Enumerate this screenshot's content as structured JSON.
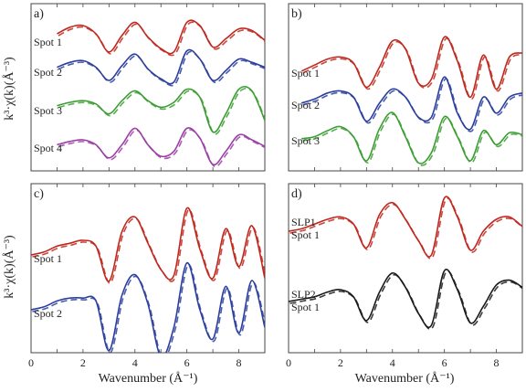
{
  "figure": {
    "ylabel": "k³·χ(k)(Å⁻³)",
    "xlabel": "Wavenumber (Å⁻¹)"
  },
  "colors": {
    "red": "#c0281e",
    "red2": "#e54a3a",
    "blue": "#2b3f9e",
    "green": "#3c9e32",
    "purple": "#9b3fa6",
    "black": "#1a1a1a",
    "frame": "#444444"
  },
  "chart_data": [
    {
      "type": "line",
      "panel": "a)",
      "xlim": [
        0,
        9
      ],
      "xticks": [],
      "labels": [
        "Spot 1",
        "Spot 2",
        "Spot 3",
        "Spot 4"
      ],
      "series": [
        {
          "label": "Spot 1",
          "color": "red",
          "style": "solid+dashed",
          "x": [
            1.0,
            1.5,
            2.0,
            2.5,
            3.0,
            3.5,
            4.0,
            4.5,
            5.0,
            5.5,
            6.0,
            6.5,
            7.0,
            7.5,
            8.0,
            8.5,
            9.0
          ],
          "y": [
            0.5,
            0.9,
            1.0,
            0.5,
            -0.6,
            0.4,
            1.2,
            0.3,
            -0.4,
            -0.6,
            1.2,
            1.0,
            -0.3,
            0.2,
            0.8,
            0.7,
            0.1
          ]
        },
        {
          "label": "Spot 2",
          "color": "blue",
          "style": "solid+dashed",
          "x": [
            1.0,
            1.5,
            2.0,
            2.5,
            3.0,
            3.5,
            4.0,
            4.5,
            5.0,
            5.5,
            6.0,
            6.5,
            7.0,
            7.5,
            8.0,
            8.5,
            9.0
          ],
          "y": [
            0.3,
            0.6,
            0.7,
            0.3,
            -0.5,
            0.4,
            1.1,
            0.2,
            -0.4,
            -0.6,
            1.3,
            0.8,
            -0.5,
            0.1,
            0.8,
            0.6,
            0.3
          ]
        },
        {
          "label": "Spot 3",
          "color": "green",
          "style": "solid+dashed",
          "x": [
            1.0,
            1.5,
            2.0,
            2.5,
            3.0,
            3.5,
            4.0,
            4.5,
            5.0,
            5.5,
            6.0,
            6.5,
            7.0,
            7.5,
            8.0,
            8.5,
            9.0
          ],
          "y": [
            0.3,
            0.5,
            0.6,
            0.4,
            -0.2,
            0.6,
            1.2,
            0.6,
            0.2,
            0.5,
            1.3,
            0.8,
            -1.3,
            -0.2,
            1.3,
            1.2,
            -0.6
          ]
        },
        {
          "label": "Spot 4",
          "color": "purple",
          "style": "solid+dashed",
          "x": [
            1.0,
            1.5,
            2.0,
            2.5,
            3.0,
            3.5,
            4.0,
            4.5,
            5.0,
            5.5,
            6.0,
            6.5,
            7.0,
            7.5,
            8.0,
            8.5,
            9.0
          ],
          "y": [
            0.2,
            0.4,
            0.5,
            0.2,
            -0.6,
            0.2,
            1.2,
            0.2,
            -0.5,
            -0.2,
            1.2,
            0.6,
            -1.0,
            -0.2,
            0.8,
            0.5,
            0.1
          ]
        }
      ]
    },
    {
      "type": "line",
      "panel": "b)",
      "xlim": [
        0,
        9
      ],
      "xticks": [],
      "labels": [
        "Spot 1",
        "Spot 2",
        "Spot 3"
      ],
      "series": [
        {
          "label": "Spot 1",
          "color": "red",
          "style": "solid+dashed",
          "x": [
            0.5,
            1.0,
            1.5,
            2.0,
            2.5,
            3.0,
            3.5,
            4.0,
            4.5,
            5.0,
            5.5,
            6.0,
            6.5,
            7.0,
            7.5,
            8.0,
            8.5,
            9.0
          ],
          "y": [
            0.1,
            0.4,
            0.7,
            0.8,
            0.5,
            -0.7,
            0.3,
            1.6,
            1.2,
            -0.5,
            -0.3,
            1.8,
            0.6,
            -1.2,
            0.9,
            -0.8,
            0.8,
            1.0
          ]
        },
        {
          "label": "Spot 2",
          "color": "blue",
          "style": "solid+dashed",
          "x": [
            0.5,
            1.0,
            1.5,
            2.0,
            2.5,
            3.0,
            3.5,
            4.0,
            4.5,
            5.0,
            5.5,
            6.0,
            6.5,
            7.0,
            7.5,
            8.0,
            8.5,
            9.0
          ],
          "y": [
            0.1,
            0.3,
            0.6,
            0.7,
            0.4,
            -0.8,
            0.1,
            0.8,
            0.4,
            -0.6,
            -0.6,
            1.4,
            -0.4,
            -1.2,
            0.4,
            -0.4,
            0.4,
            0.6
          ]
        },
        {
          "label": "Spot 3",
          "color": "green",
          "style": "solid+dashed",
          "x": [
            0.5,
            1.0,
            1.5,
            2.0,
            2.5,
            3.0,
            3.5,
            4.0,
            4.5,
            5.0,
            5.5,
            6.0,
            6.5,
            7.0,
            7.5,
            8.0,
            8.5,
            9.0
          ],
          "y": [
            0.1,
            0.2,
            0.5,
            0.7,
            0.2,
            -1.0,
            0.6,
            1.4,
            0.2,
            -1.1,
            -0.6,
            1.2,
            0.2,
            -1.0,
            0.5,
            -0.2,
            0.4,
            0.3
          ]
        }
      ]
    },
    {
      "type": "line",
      "panel": "c)",
      "xlim": [
        0,
        9
      ],
      "xticks": [
        0,
        2,
        4,
        6,
        8
      ],
      "xlabel": "Wavenumber (Å⁻¹)",
      "labels": [
        "Spot 1",
        "Spot 2"
      ],
      "series": [
        {
          "label": "Spot 1",
          "color": "red",
          "style": "solid+dashed",
          "x": [
            0.0,
            0.5,
            1.0,
            1.5,
            2.0,
            2.5,
            3.0,
            3.5,
            4.0,
            4.5,
            5.0,
            5.5,
            6.0,
            6.5,
            7.0,
            7.5,
            8.0,
            8.5,
            9.0
          ],
          "y": [
            0.0,
            0.1,
            0.3,
            0.4,
            0.5,
            0.3,
            -0.9,
            0.8,
            1.3,
            0.4,
            -0.5,
            -0.7,
            1.6,
            0.2,
            -0.8,
            0.9,
            -0.4,
            1.0,
            -0.8
          ]
        },
        {
          "label": "Spot 2",
          "color": "blue",
          "style": "solid+dashed",
          "x": [
            0.0,
            0.5,
            1.0,
            1.5,
            2.0,
            2.5,
            3.0,
            3.5,
            4.0,
            4.5,
            5.0,
            5.5,
            6.0,
            6.5,
            7.0,
            7.5,
            8.0,
            8.5,
            9.0
          ],
          "y": [
            0.0,
            0.1,
            0.3,
            0.4,
            0.4,
            0.3,
            -1.4,
            0.5,
            1.2,
            0.2,
            -1.6,
            -0.6,
            1.6,
            0.0,
            -1.0,
            0.8,
            -0.8,
            1.0,
            -0.6
          ]
        }
      ]
    },
    {
      "type": "line",
      "panel": "d)",
      "xlim": [
        0,
        9
      ],
      "xticks": [
        0,
        2,
        4,
        6,
        8
      ],
      "xlabel": "Wavenumber (Å⁻¹)",
      "labels": [
        "SLP1\nSpot 1",
        "SLP2\nSpot 1"
      ],
      "series": [
        {
          "label": "SLP1 Spot 1",
          "color": "red",
          "style": "solid+dashed",
          "x": [
            0.0,
            0.5,
            1.0,
            1.5,
            2.0,
            2.5,
            3.0,
            3.5,
            4.0,
            4.5,
            5.0,
            5.5,
            6.0,
            6.5,
            7.0,
            7.5,
            8.0,
            8.5,
            9.0
          ],
          "y": [
            0.0,
            0.1,
            0.3,
            0.5,
            0.6,
            0.3,
            -0.7,
            0.7,
            1.2,
            0.5,
            -0.4,
            -1.0,
            1.4,
            0.6,
            -0.8,
            0.0,
            0.5,
            0.6,
            0.2
          ]
        },
        {
          "label": "SLP2 Spot 1",
          "color": "black",
          "style": "solid+dashed",
          "x": [
            0.0,
            0.5,
            1.0,
            1.5,
            2.0,
            2.5,
            3.0,
            3.5,
            4.0,
            4.5,
            5.0,
            5.5,
            6.0,
            6.5,
            7.0,
            7.5,
            8.0,
            8.5,
            9.0
          ],
          "y": [
            0.0,
            0.1,
            0.2,
            0.4,
            0.5,
            0.2,
            -0.8,
            0.4,
            1.2,
            0.6,
            -0.5,
            -1.0,
            1.3,
            0.5,
            -0.9,
            -0.2,
            0.7,
            0.9,
            0.6
          ]
        }
      ]
    }
  ]
}
